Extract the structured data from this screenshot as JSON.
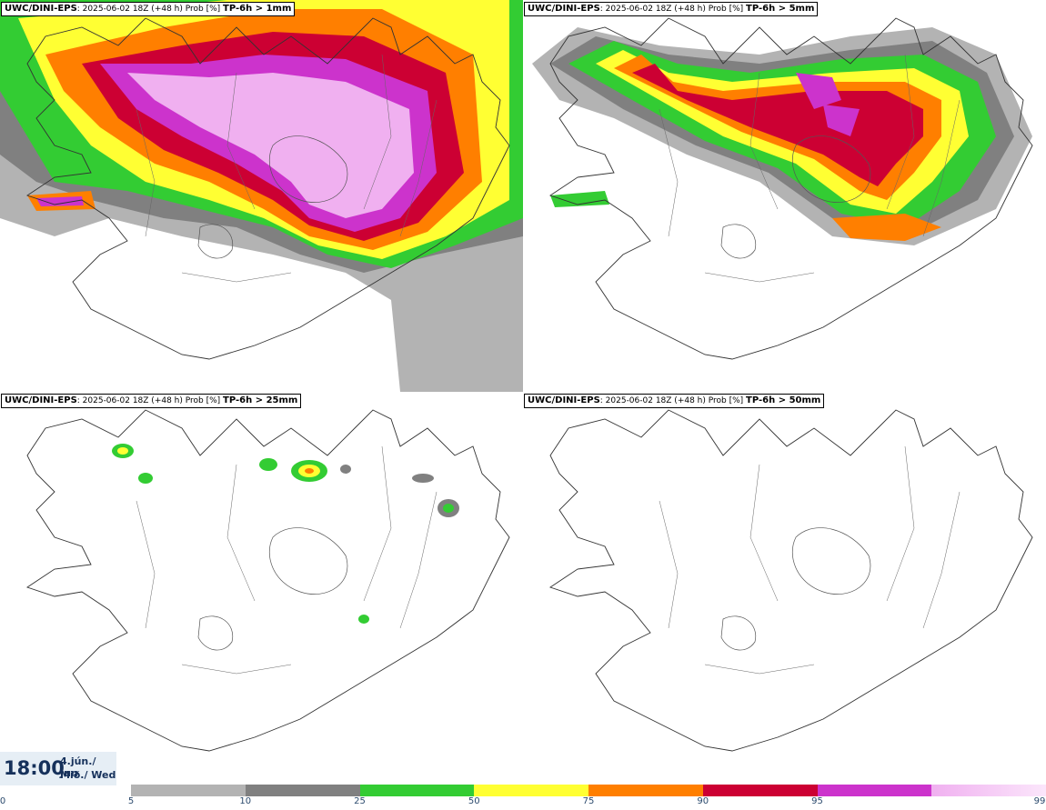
{
  "panels": [
    {
      "model": "UWC/DINI-EPS",
      "run": ": 2025-06-02 18Z (+48 h) Prob [%]",
      "field": "TP-6h > 1mm"
    },
    {
      "model": "UWC/DINI-EPS",
      "run": ": 2025-06-02 18Z (+48 h) Prob [%]",
      "field": "TP-6h > 5mm"
    },
    {
      "model": "UWC/DINI-EPS",
      "run": ": 2025-06-02 18Z (+48 h) Prob [%]",
      "field": "TP-6h > 25mm"
    },
    {
      "model": "UWC/DINI-EPS",
      "run": ": 2025-06-02 18Z (+48 h) Prob [%]",
      "field": "TP-6h > 50mm"
    }
  ],
  "valid_time": {
    "time": "18:00",
    "date_line1": "4.jún./ Jun",
    "date_line2": "Mið./ Wed"
  },
  "legend": {
    "ticks": [
      "0",
      "5",
      "10",
      "25",
      "50",
      "75",
      "90",
      "95",
      "99"
    ],
    "colors": [
      "#b3b3b3",
      "#808080",
      "#33cc33",
      "#ffff33",
      "#ff7f00",
      "#cc0033",
      "#cc33cc",
      "#f0b0f0"
    ]
  }
}
